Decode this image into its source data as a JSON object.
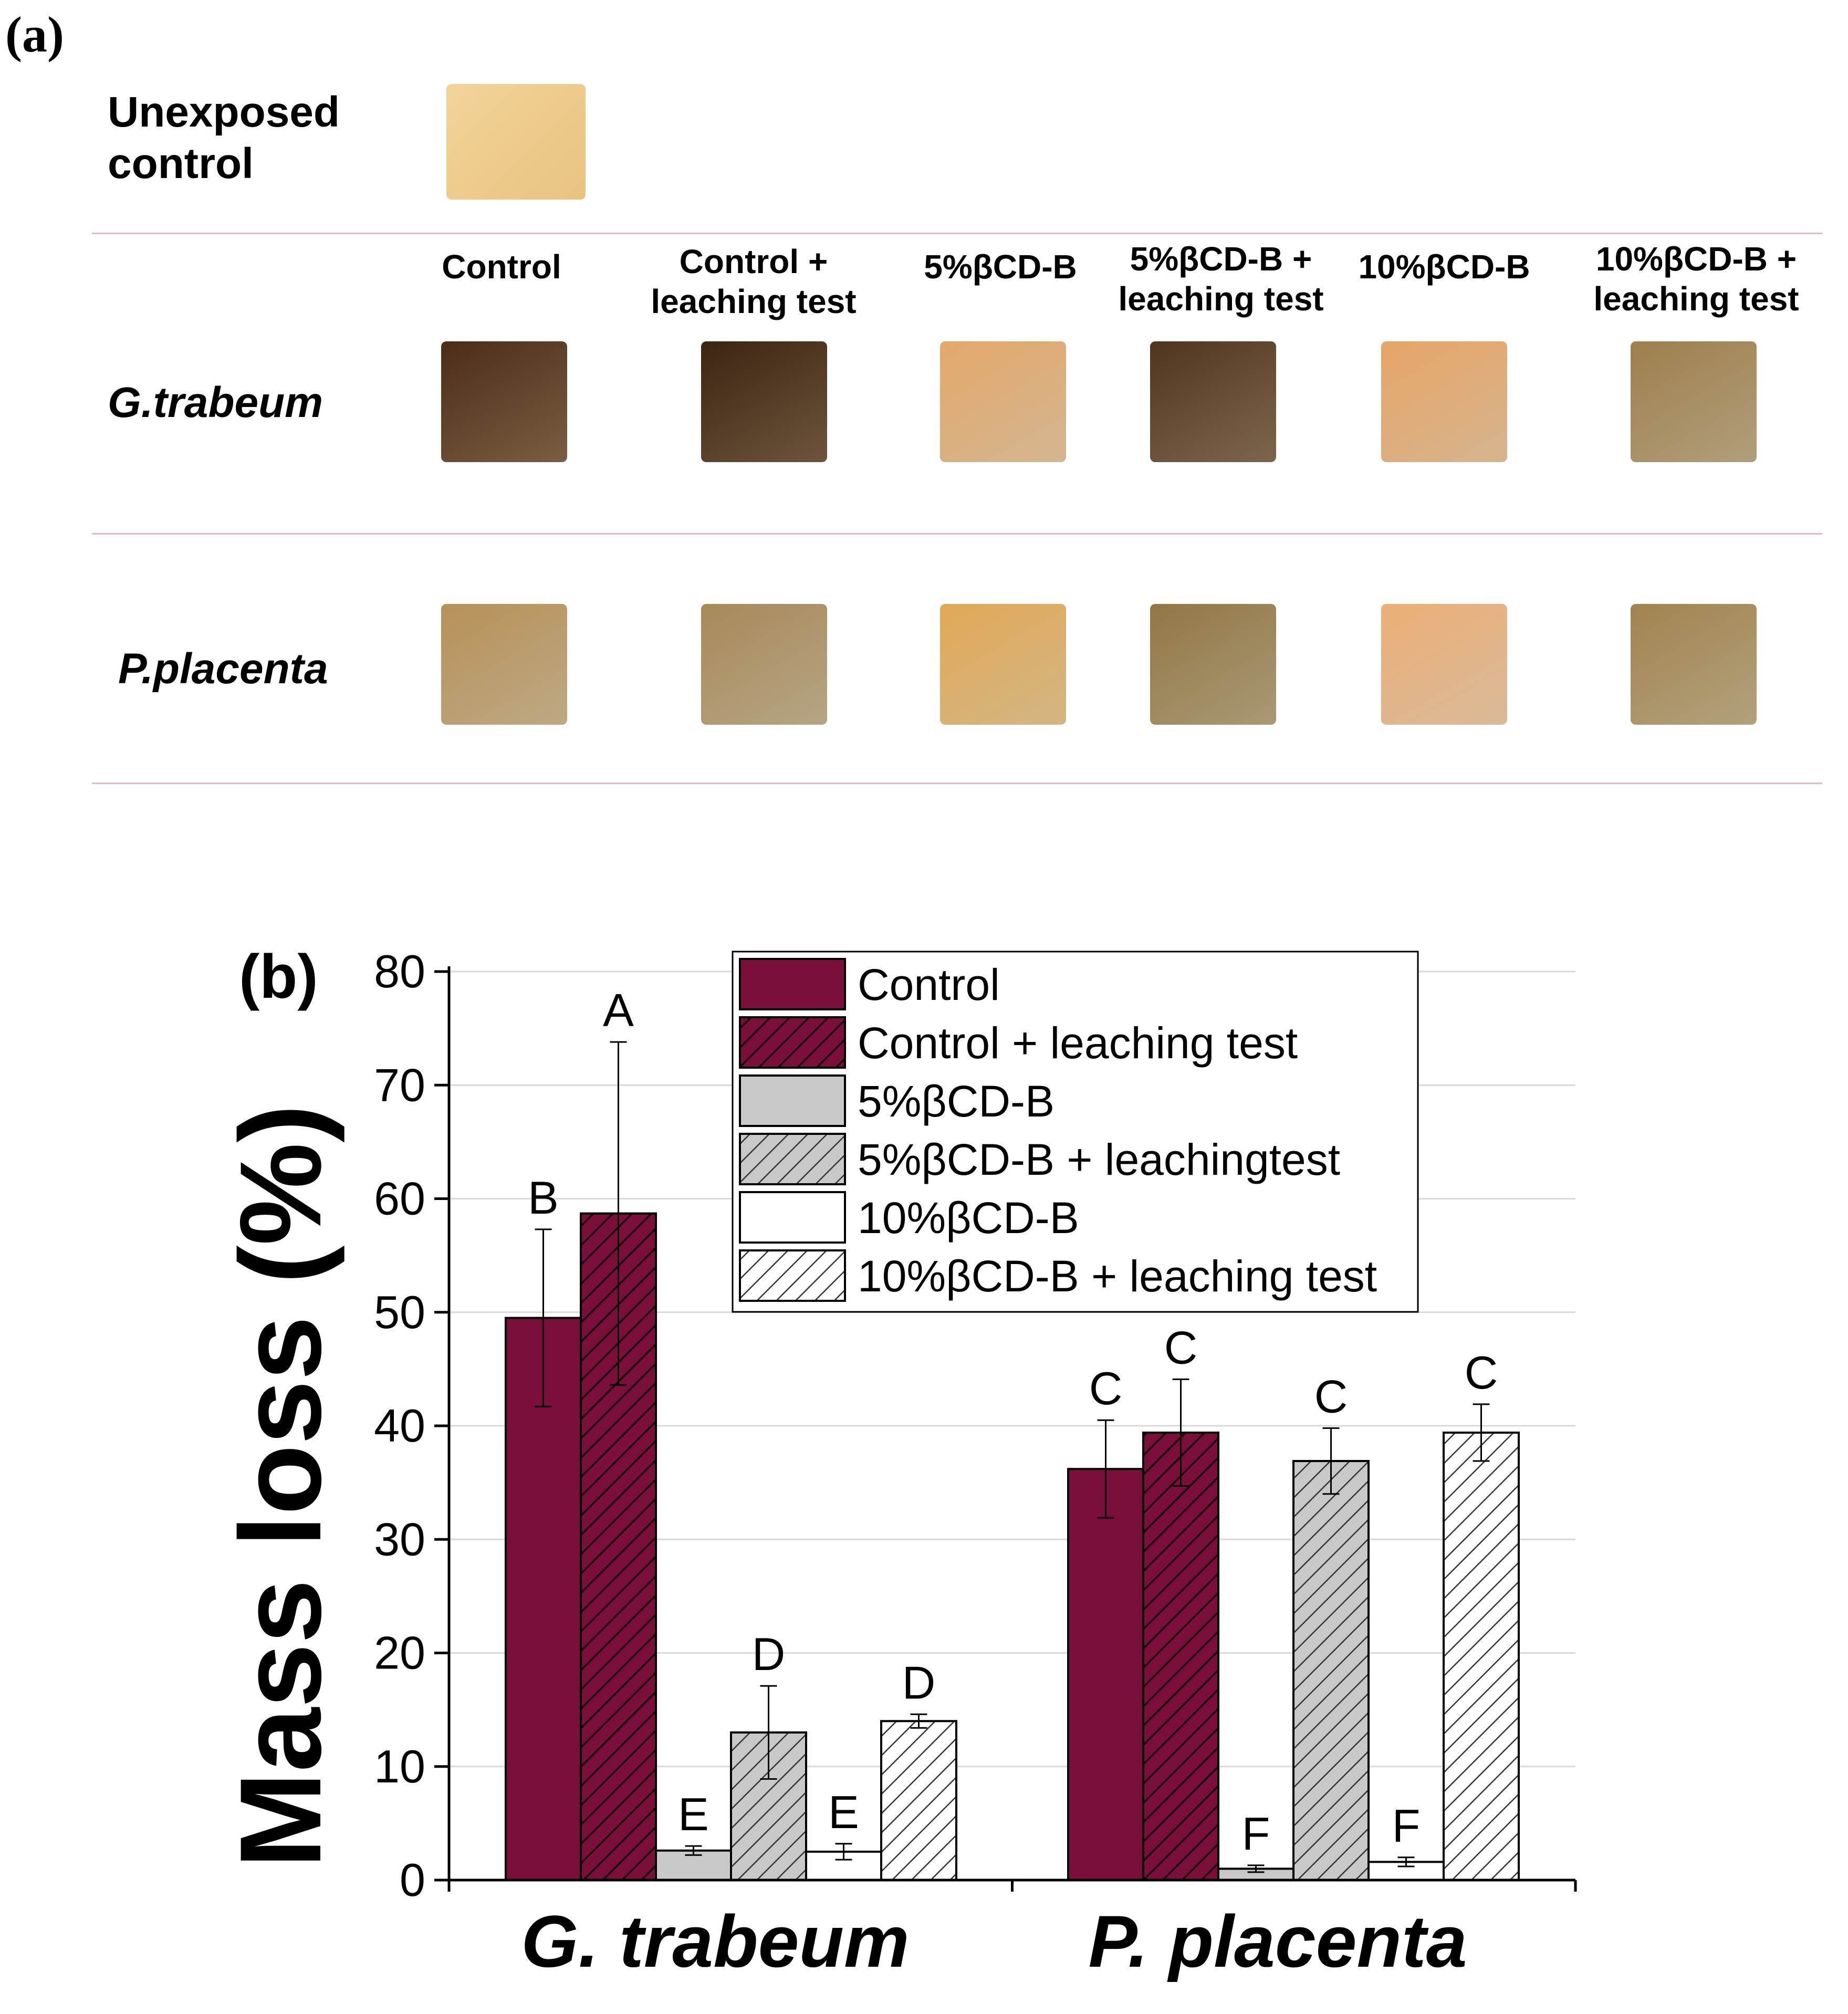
{
  "panel_a": {
    "label": "(a)",
    "unexposed_label_line1": "Unexposed",
    "unexposed_label_line2": "control",
    "row_labels": [
      "G.trabeum",
      "P.placenta"
    ],
    "columns": [
      {
        "line1": "Control",
        "line2": ""
      },
      {
        "line1": "Control +",
        "line2": "leaching test"
      },
      {
        "line1": "5%βCD-B",
        "line2": ""
      },
      {
        "line1": "5%βCD-B +",
        "line2": "leaching test"
      },
      {
        "line1": "10%βCD-B",
        "line2": ""
      },
      {
        "line1": "10%βCD-B +",
        "line2": "leaching test"
      }
    ],
    "block_colors": {
      "unexposed": "#f2d49a",
      "g_trabeum": [
        "#8b6a4c",
        "#7d6043",
        "#f1cfa5",
        "#8f7456",
        "#f3cda2",
        "#c9b48c"
      ],
      "p_placenta": [
        "#d8c096",
        "#cfbb97",
        "#f0cf96",
        "#c1ae85",
        "#f6d3ae",
        "#cbb78e"
      ]
    }
  },
  "chart_data": {
    "type": "bar",
    "panel_label": "(b)",
    "categories": [
      "G. trabeum",
      "P. placenta"
    ],
    "ylabel": "Mass loss (%)",
    "xlabel": "",
    "ylim": [
      0,
      80
    ],
    "yticks": [
      0,
      10,
      20,
      30,
      40,
      50,
      60,
      70,
      80
    ],
    "grid": true,
    "legend_position": "top-right",
    "series": [
      {
        "name": "Control",
        "legend_label": "Control",
        "values": [
          49.5,
          36.2
        ],
        "errors": [
          7.8,
          4.3
        ],
        "letters": [
          "B",
          "C"
        ],
        "color": "#7b0f3b",
        "hatch": false
      },
      {
        "name": "Control + leaching test",
        "legend_label": "Control + leaching test",
        "values": [
          58.7,
          39.4
        ],
        "errors": [
          15.1,
          4.7
        ],
        "letters": [
          "A",
          "C"
        ],
        "color": "#7b0f3b",
        "hatch": true
      },
      {
        "name": "5%βCD-B",
        "legend_label": "5%βCD-B",
        "values": [
          2.6,
          1.0
        ],
        "errors": [
          0.4,
          0.3
        ],
        "letters": [
          "E",
          "F"
        ],
        "color": "#c8c8c8",
        "hatch": false
      },
      {
        "name": "5%βCD-B + leaching test",
        "legend_label": "5%βCD-B + leachingtest",
        "values": [
          13.0,
          36.9
        ],
        "errors": [
          4.1,
          2.9
        ],
        "letters": [
          "D",
          "C"
        ],
        "color": "#c8c8c8",
        "hatch": true
      },
      {
        "name": "10%βCD-B",
        "legend_label": "10%βCD-B",
        "values": [
          2.5,
          1.6
        ],
        "errors": [
          0.7,
          0.4
        ],
        "letters": [
          "E",
          "F"
        ],
        "color": "#ffffff",
        "hatch": false
      },
      {
        "name": "10%βCD-B + leaching test",
        "legend_label": "10%βCD-B + leaching test",
        "values": [
          14.0,
          39.4
        ],
        "errors": [
          0.6,
          2.5
        ],
        "letters": [
          "D",
          "C"
        ],
        "color": "#ffffff",
        "hatch": true
      }
    ]
  }
}
